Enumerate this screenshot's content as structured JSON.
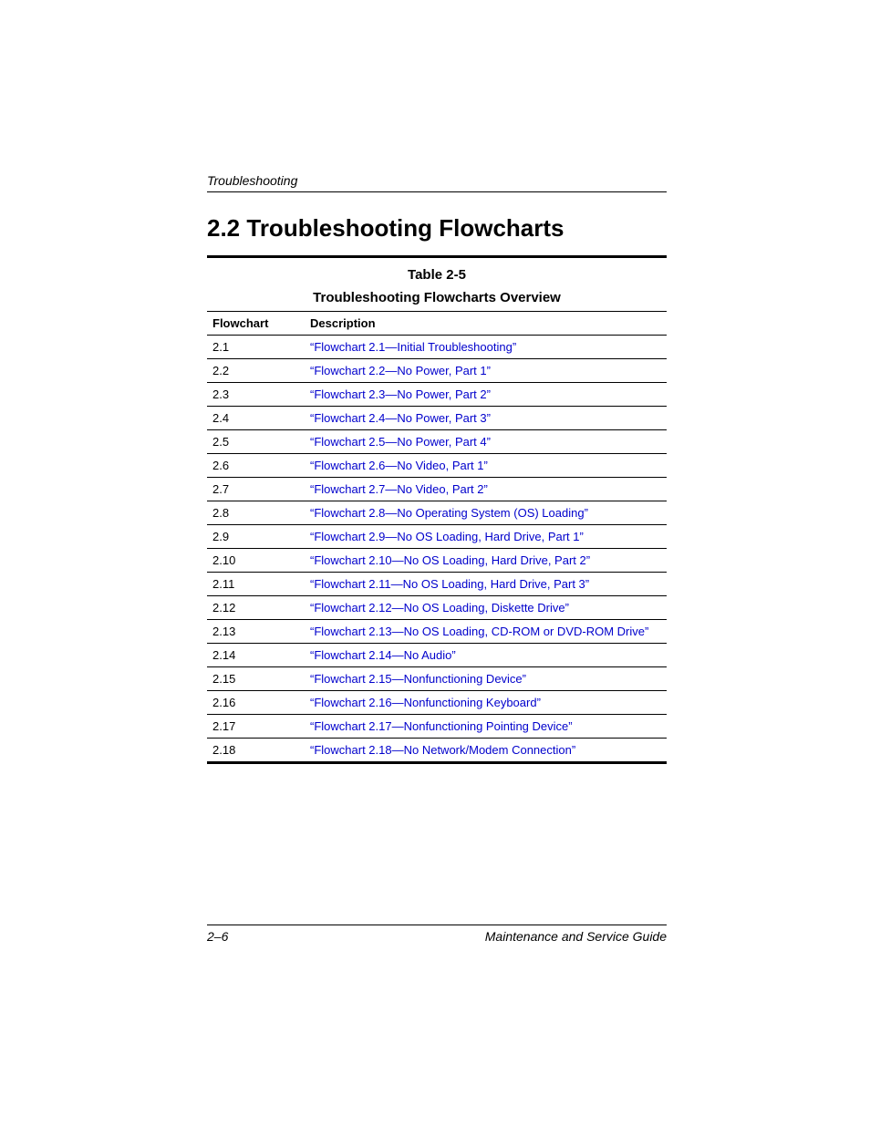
{
  "page": {
    "running_header": "Troubleshooting",
    "section_title": "2.2 Troubleshooting Flowcharts",
    "footer_left": "2–6",
    "footer_right": "Maintenance and Service Guide"
  },
  "table": {
    "number": "Table 2-5",
    "title": "Troubleshooting Flowcharts Overview",
    "columns": {
      "flowchart": "Flowchart",
      "description": "Description"
    },
    "link_color": "#0000cc",
    "rows": [
      {
        "id": "2.1",
        "desc": "“Flowchart 2.1—Initial Troubleshooting”"
      },
      {
        "id": "2.2",
        "desc": "“Flowchart 2.2—No Power, Part 1”"
      },
      {
        "id": "2.3",
        "desc": "“Flowchart 2.3—No Power, Part 2”"
      },
      {
        "id": "2.4",
        "desc": "“Flowchart 2.4—No Power, Part 3”"
      },
      {
        "id": "2.5",
        "desc": "“Flowchart 2.5—No Power, Part 4”"
      },
      {
        "id": "2.6",
        "desc": "“Flowchart 2.6—No Video, Part 1”"
      },
      {
        "id": "2.7",
        "desc": "“Flowchart 2.7—No Video, Part 2”"
      },
      {
        "id": "2.8",
        "desc": "“Flowchart 2.8—No Operating System (OS) Loading”"
      },
      {
        "id": "2.9",
        "desc": "“Flowchart 2.9—No OS Loading, Hard Drive, Part 1”"
      },
      {
        "id": "2.10",
        "desc": "“Flowchart 2.10—No OS Loading, Hard Drive, Part 2”"
      },
      {
        "id": "2.11",
        "desc": "“Flowchart 2.11—No OS Loading, Hard Drive, Part 3”"
      },
      {
        "id": "2.12",
        "desc": "“Flowchart 2.12—No OS Loading, Diskette Drive”"
      },
      {
        "id": "2.13",
        "desc": "“Flowchart 2.13—No OS Loading, CD-ROM or DVD-ROM Drive”"
      },
      {
        "id": "2.14",
        "desc": "“Flowchart 2.14—No Audio”"
      },
      {
        "id": "2.15",
        "desc": "“Flowchart 2.15—Nonfunctioning Device”"
      },
      {
        "id": "2.16",
        "desc": "“Flowchart 2.16—Nonfunctioning Keyboard”"
      },
      {
        "id": "2.17",
        "desc": "“Flowchart 2.17—Nonfunctioning Pointing Device”"
      },
      {
        "id": "2.18",
        "desc": "“Flowchart 2.18—No Network/Modem Connection”"
      }
    ]
  }
}
